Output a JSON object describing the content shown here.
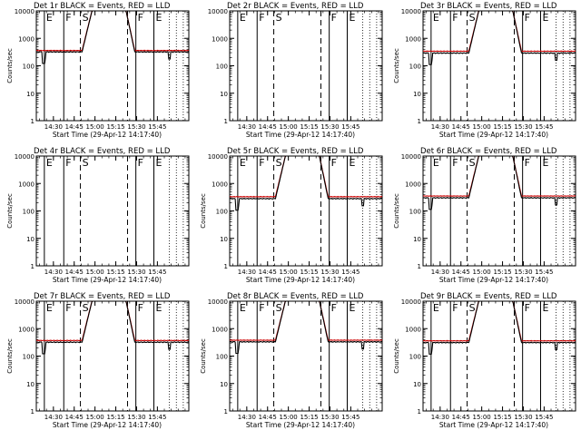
{
  "figure": {
    "x_axis_label": "Start Time (29-Apr-12 14:17:40)",
    "y_axis_label": "Counts/sec",
    "title_suffix": "BLACK = Events, RED = LLD",
    "x_tick_labels": [
      "14:30",
      "14:45",
      "15:00",
      "15:15",
      "15:30",
      "15:45"
    ],
    "y_tick_labels": [
      "1",
      "10",
      "100",
      "1000",
      "10000"
    ]
  },
  "colors": {
    "events": "#000000",
    "lld": "#cc0000",
    "background": "#ffffff"
  },
  "chart_data": [
    {
      "type": "line",
      "panel": 1,
      "title": "Det 1r BLACK = Events, RED = LLD",
      "xlabel": "Start Time (29-Apr-12 14:17:40)",
      "ylabel": "Counts/sec",
      "yscale": "log",
      "xlim_minutes_after_start": [
        0,
        110
      ],
      "ylim": [
        1,
        10000
      ],
      "x_ticks": [
        "14:30",
        "14:45",
        "15:00",
        "15:15",
        "15:30",
        "15:45"
      ],
      "y_ticks": [
        1,
        10,
        100,
        1000,
        10000
      ],
      "has_data": true,
      "saa_markers": [
        "E",
        "F",
        "S",
        "F",
        "E"
      ],
      "series": [
        {
          "name": "Events",
          "color": "black",
          "baseline_counts_per_sec": 320,
          "peak_counts_per_sec": 10000
        },
        {
          "name": "LLD",
          "color": "red",
          "baseline_counts_per_sec": 360,
          "peak_counts_per_sec": 10000
        }
      ]
    },
    {
      "type": "line",
      "panel": 2,
      "title": "Det 2r BLACK = Events, RED = LLD",
      "xlabel": "Start Time (29-Apr-12 14:17:40)",
      "ylabel": "",
      "yscale": "log",
      "xlim_minutes_after_start": [
        0,
        110
      ],
      "ylim": [
        1,
        10000
      ],
      "x_ticks": [
        "14:30",
        "14:45",
        "15:00",
        "15:15",
        "15:30",
        "15:45"
      ],
      "y_ticks": [
        1,
        10,
        100,
        1000,
        10000
      ],
      "has_data": false,
      "saa_markers": [
        "E",
        "F",
        "S",
        "F",
        "E"
      ],
      "series": []
    },
    {
      "type": "line",
      "panel": 3,
      "title": "Det 3r BLACK = Events, RED = LLD",
      "xlabel": "Start Time (29-Apr-12 14:17:40)",
      "ylabel": "Counts/sec",
      "yscale": "log",
      "xlim_minutes_after_start": [
        0,
        110
      ],
      "ylim": [
        1,
        10000
      ],
      "x_ticks": [
        "14:30",
        "14:45",
        "15:00",
        "15:15",
        "15:30",
        "15:45"
      ],
      "y_ticks": [
        1,
        10,
        100,
        1000,
        10000
      ],
      "has_data": true,
      "saa_markers": [
        "E",
        "F",
        "S",
        "F",
        "E"
      ],
      "series": [
        {
          "name": "Events",
          "color": "black",
          "baseline_counts_per_sec": 290,
          "peak_counts_per_sec": 10000
        },
        {
          "name": "LLD",
          "color": "red",
          "baseline_counts_per_sec": 340,
          "peak_counts_per_sec": 10000
        }
      ]
    },
    {
      "type": "line",
      "panel": 4,
      "title": "Det 4r BLACK = Events, RED = LLD",
      "xlabel": "Start Time (29-Apr-12 14:17:40)",
      "ylabel": "Counts/sec",
      "yscale": "log",
      "xlim_minutes_after_start": [
        0,
        110
      ],
      "ylim": [
        1,
        10000
      ],
      "x_ticks": [
        "14:30",
        "14:45",
        "15:00",
        "15:15",
        "15:30",
        "15:45"
      ],
      "y_ticks": [
        1,
        10,
        100,
        1000,
        10000
      ],
      "has_data": false,
      "saa_markers": [
        "E",
        "F",
        "S",
        "F",
        "E"
      ],
      "series": []
    },
    {
      "type": "line",
      "panel": 5,
      "title": "Det 5r BLACK = Events, RED = LLD",
      "xlabel": "Start Time (29-Apr-12 14:17:40)",
      "ylabel": "Counts/sec",
      "yscale": "log",
      "xlim_minutes_after_start": [
        0,
        110
      ],
      "ylim": [
        1,
        10000
      ],
      "x_ticks": [
        "14:30",
        "14:45",
        "15:00",
        "15:15",
        "15:30",
        "15:45"
      ],
      "y_ticks": [
        1,
        10,
        100,
        1000,
        10000
      ],
      "has_data": true,
      "saa_markers": [
        "E",
        "F",
        "S",
        "F",
        "E"
      ],
      "series": [
        {
          "name": "Events",
          "color": "black",
          "baseline_counts_per_sec": 280,
          "peak_counts_per_sec": 10000
        },
        {
          "name": "LLD",
          "color": "red",
          "baseline_counts_per_sec": 330,
          "peak_counts_per_sec": 10000
        }
      ]
    },
    {
      "type": "line",
      "panel": 6,
      "title": "Det 6r BLACK = Events, RED = LLD",
      "xlabel": "Start Time (29-Apr-12 14:17:40)",
      "ylabel": "Counts/sec",
      "yscale": "log",
      "xlim_minutes_after_start": [
        0,
        110
      ],
      "ylim": [
        1,
        10000
      ],
      "x_ticks": [
        "14:30",
        "14:45",
        "15:00",
        "15:15",
        "15:30",
        "15:45"
      ],
      "y_ticks": [
        1,
        10,
        100,
        1000,
        10000
      ],
      "has_data": true,
      "saa_markers": [
        "E",
        "F",
        "S",
        "F",
        "E"
      ],
      "series": [
        {
          "name": "Events",
          "color": "black",
          "baseline_counts_per_sec": 300,
          "peak_counts_per_sec": 10000
        },
        {
          "name": "LLD",
          "color": "red",
          "baseline_counts_per_sec": 350,
          "peak_counts_per_sec": 10000
        }
      ]
    },
    {
      "type": "line",
      "panel": 7,
      "title": "Det 7r BLACK = Events, RED = LLD",
      "xlabel": "Start Time (29-Apr-12 14:17:40)",
      "ylabel": "Counts/sec",
      "yscale": "log",
      "xlim_minutes_after_start": [
        0,
        110
      ],
      "ylim": [
        1,
        10000
      ],
      "x_ticks": [
        "14:30",
        "14:45",
        "15:00",
        "15:15",
        "15:30",
        "15:45"
      ],
      "y_ticks": [
        1,
        10,
        100,
        1000,
        10000
      ],
      "has_data": true,
      "saa_markers": [
        "E",
        "F",
        "S",
        "F",
        "E"
      ],
      "series": [
        {
          "name": "Events",
          "color": "black",
          "baseline_counts_per_sec": 320,
          "peak_counts_per_sec": 10000
        },
        {
          "name": "LLD",
          "color": "red",
          "baseline_counts_per_sec": 370,
          "peak_counts_per_sec": 10000
        }
      ]
    },
    {
      "type": "line",
      "panel": 8,
      "title": "Det 8r BLACK = Events, RED = LLD",
      "xlabel": "Start Time (29-Apr-12 14:17:40)",
      "ylabel": "Counts/sec",
      "yscale": "log",
      "xlim_minutes_after_start": [
        0,
        110
      ],
      "ylim": [
        1,
        10000
      ],
      "x_ticks": [
        "14:30",
        "14:45",
        "15:00",
        "15:15",
        "15:30",
        "15:45"
      ],
      "y_ticks": [
        1,
        10,
        100,
        1000,
        10000
      ],
      "has_data": true,
      "saa_markers": [
        "E",
        "F",
        "S",
        "F",
        "E"
      ],
      "series": [
        {
          "name": "Events",
          "color": "black",
          "baseline_counts_per_sec": 330,
          "peak_counts_per_sec": 10000
        },
        {
          "name": "LLD",
          "color": "red",
          "baseline_counts_per_sec": 380,
          "peak_counts_per_sec": 10000
        }
      ]
    },
    {
      "type": "line",
      "panel": 9,
      "title": "Det 9r BLACK = Events, RED = LLD",
      "xlabel": "Start Time (29-Apr-12 14:17:40)",
      "ylabel": "Counts/sec",
      "yscale": "log",
      "xlim_minutes_after_start": [
        0,
        110
      ],
      "ylim": [
        1,
        10000
      ],
      "x_ticks": [
        "14:30",
        "14:45",
        "15:00",
        "15:15",
        "15:30",
        "15:45"
      ],
      "y_ticks": [
        1,
        10,
        100,
        1000,
        10000
      ],
      "has_data": true,
      "saa_markers": [
        "E",
        "F",
        "S",
        "F",
        "E"
      ],
      "series": [
        {
          "name": "Events",
          "color": "black",
          "baseline_counts_per_sec": 310,
          "peak_counts_per_sec": 10000
        },
        {
          "name": "LLD",
          "color": "red",
          "baseline_counts_per_sec": 360,
          "peak_counts_per_sec": 10000
        }
      ]
    }
  ],
  "event_times_minutes_after_start": {
    "solid_lines": [
      5.8,
      19.8,
      71.8,
      84.8
    ],
    "dashed_lines": [
      31.8,
      65.8
    ],
    "dotted_lines": [
      96,
      101,
      106
    ],
    "marker_label_times": [
      5.8,
      19.8,
      31.8,
      71.8,
      84.8
    ],
    "marker_line_styles": [
      "solid",
      "solid",
      "dashed",
      "solid",
      "solid"
    ]
  }
}
